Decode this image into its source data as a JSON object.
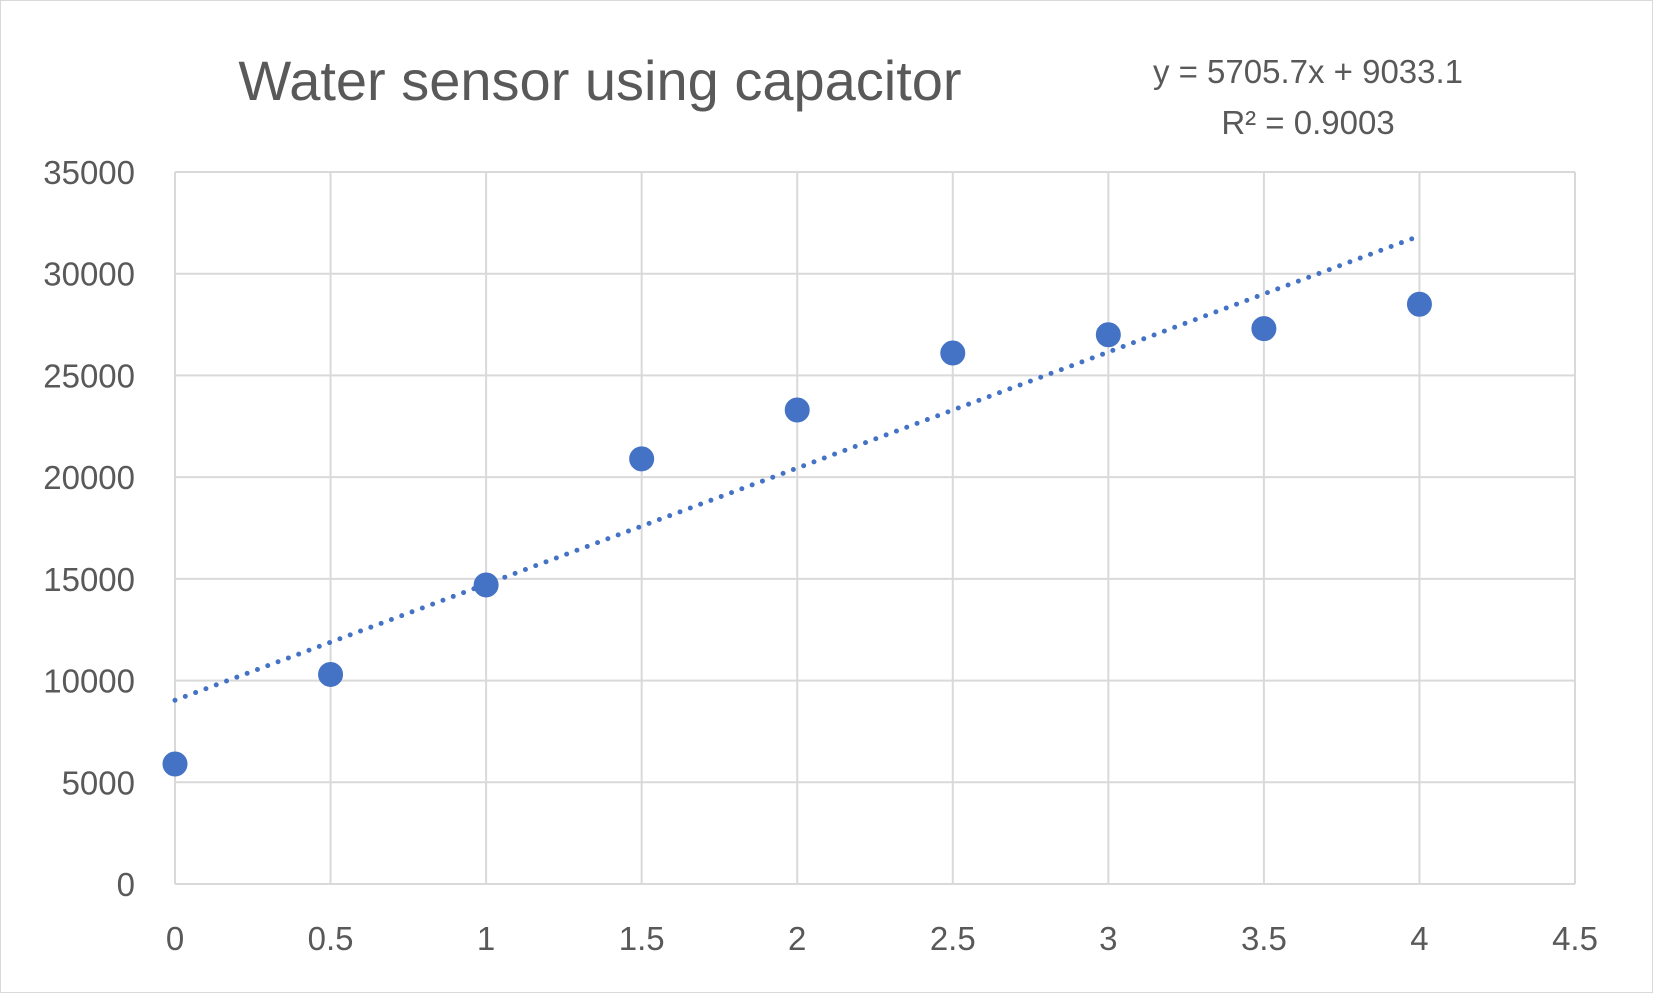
{
  "chart_data": {
    "type": "scatter",
    "title": "Water sensor using capacitor",
    "xlabel": "",
    "ylabel": "",
    "xlim": [
      0,
      4.5
    ],
    "ylim": [
      0,
      35000
    ],
    "x_ticks": [
      "0",
      "0.5",
      "1",
      "1.5",
      "2",
      "2.5",
      "3",
      "3.5",
      "4",
      "4.5"
    ],
    "y_ticks": [
      "0",
      "5000",
      "10000",
      "15000",
      "20000",
      "25000",
      "30000",
      "35000"
    ],
    "grid": true,
    "legend": "none",
    "series": [
      {
        "x": [
          0,
          0.5,
          1,
          1.5,
          2,
          2.5,
          3,
          3.5,
          4
        ],
        "y": [
          5900,
          10300,
          14700,
          20900,
          23300,
          26100,
          27000,
          27300,
          28500
        ],
        "color": "#4472c4",
        "marker": "circle"
      }
    ],
    "trendline": {
      "type": "linear",
      "style": "dotted",
      "color": "#4472c4",
      "slope": 5705.7,
      "intercept": 9033.1,
      "x_range": [
        0,
        4
      ],
      "equation_label": "y = 5705.7x + 9033.1",
      "r_squared_label": "R² = 0.9003"
    }
  }
}
